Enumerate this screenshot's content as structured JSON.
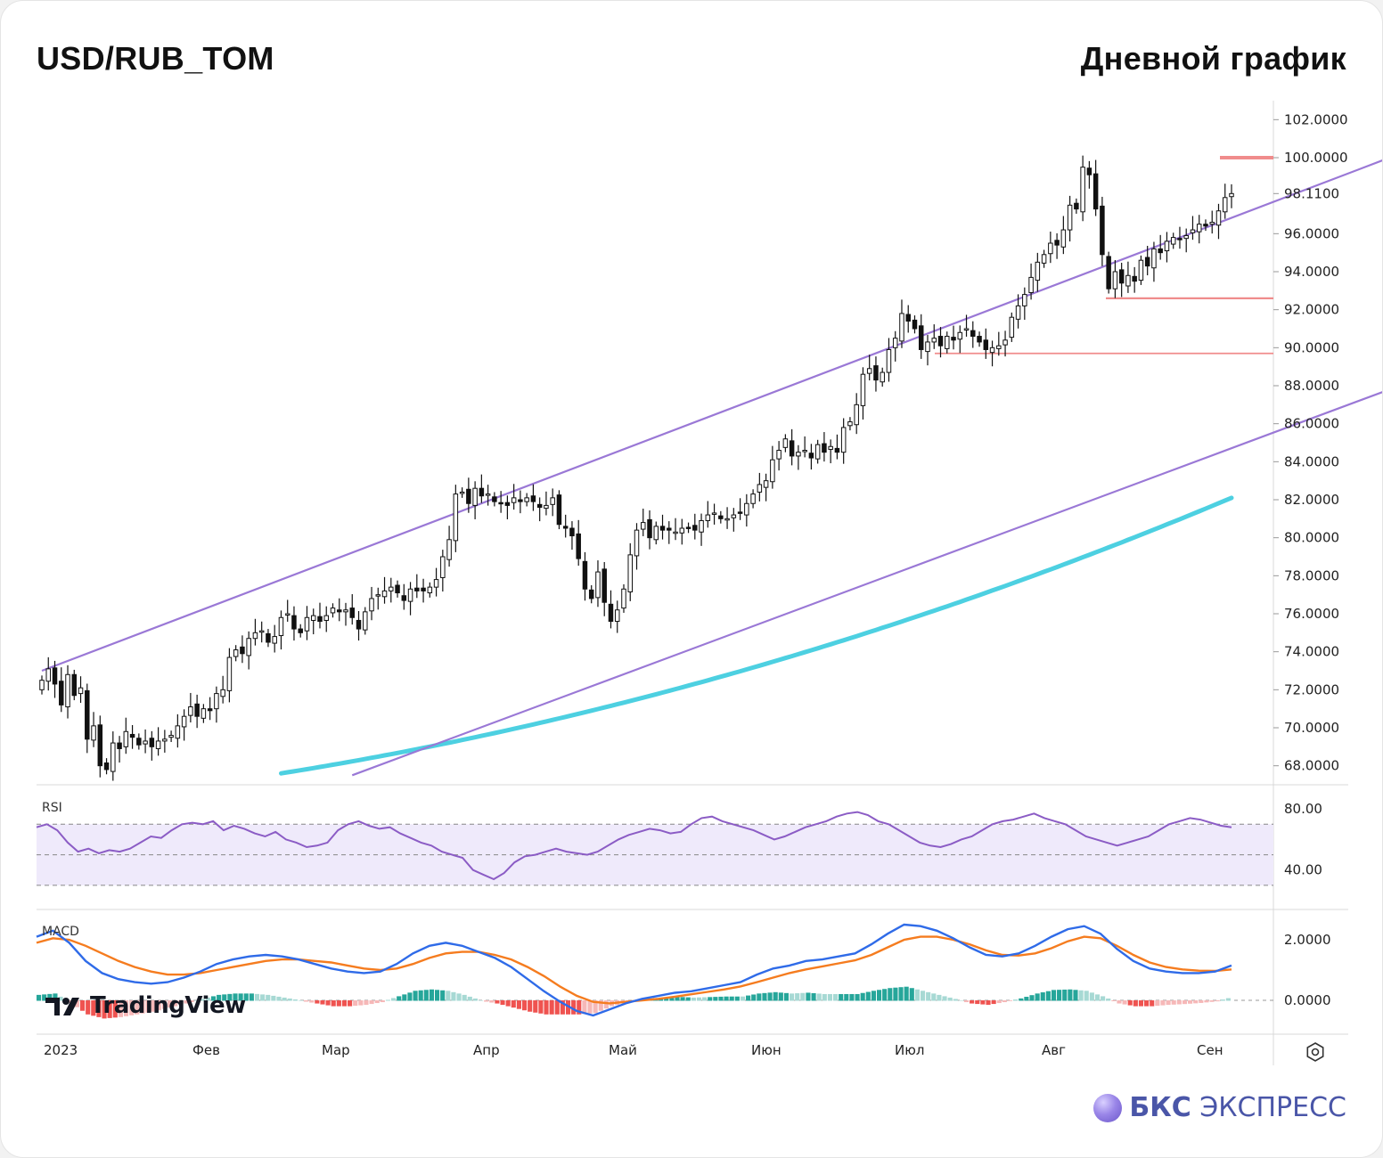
{
  "header": {
    "pair": "USD/RUB_TOM",
    "timeframe": "Дневной график"
  },
  "branding": {
    "tradingview": "TradingView",
    "bcs_bold": "БКС",
    "bcs_rest": " ЭКСПРЕСС"
  },
  "colors": {
    "channel": "#9a78d6",
    "ma": "#4dd0e1",
    "level": "#f08c8c",
    "rsi": "#8b5cc5",
    "macd": "#2f6be8",
    "signal": "#f57c1f",
    "hist_pos": "#26a69a",
    "hist_neg": "#ef5350"
  },
  "chart_data": {
    "type": "candlestick",
    "symbol": "USD/RUB_TOM",
    "y_ticks": [
      "102.0000",
      "100.0000",
      "98.1100",
      "96.0000",
      "94.0000",
      "92.0000",
      "90.0000",
      "88.0000",
      "86.0000",
      "84.0000",
      "82.0000",
      "80.0000",
      "78.0000",
      "76.0000",
      "74.0000",
      "72.0000",
      "70.0000",
      "68.0000"
    ],
    "ylim": [
      67,
      103
    ],
    "x_labels": [
      "2023",
      "Фев",
      "Мар",
      "Апр",
      "Май",
      "Июн",
      "Июл",
      "Авг",
      "Сен"
    ],
    "close": [
      72.5,
      73.1,
      72.3,
      71.2,
      72.8,
      71.7,
      72.1,
      69.4,
      70.1,
      68.0,
      67.8,
      69.2,
      68.9,
      69.8,
      69.5,
      69.1,
      69.3,
      69.0,
      69.3,
      69.4,
      69.6,
      70.1,
      70.6,
      71.1,
      70.6,
      71.0,
      70.9,
      71.8,
      72.0,
      73.7,
      74.1,
      73.9,
      74.7,
      75.0,
      75.1,
      74.5,
      74.8,
      75.8,
      76.0,
      75.2,
      75.0,
      75.8,
      75.9,
      75.6,
      75.9,
      76.3,
      76.1,
      76.2,
      75.8,
      75.2,
      76.1,
      76.8,
      77.0,
      77.2,
      77.4,
      77.1,
      76.7,
      77.3,
      77.2,
      77.2,
      77.4,
      77.8,
      79.0,
      79.9,
      82.3,
      82.4,
      81.8,
      82.6,
      82.2,
      82.3,
      81.9,
      81.8,
      81.7,
      82.1,
      81.9,
      82.1,
      81.9,
      81.6,
      81.7,
      82.1,
      80.7,
      80.5,
      80.1,
      78.9,
      77.3,
      76.8,
      78.2,
      76.6,
      75.6,
      76.2,
      77.3,
      79.1,
      80.4,
      80.8,
      80.0,
      80.6,
      80.4,
      80.4,
      80.3,
      80.5,
      80.5,
      80.4,
      80.9,
      81.2,
      81.3,
      81.0,
      81.0,
      81.2,
      81.3,
      81.8,
      82.3,
      82.8,
      83.0,
      84.1,
      84.6,
      85.2,
      84.3,
      84.5,
      84.6,
      84.2,
      84.9,
      84.5,
      84.8,
      84.5,
      85.8,
      86.1,
      87.0,
      88.6,
      88.9,
      88.3,
      88.7,
      89.9,
      90.5,
      91.8,
      91.4,
      91.0,
      89.9,
      90.3,
      90.5,
      90.1,
      90.6,
      90.4,
      90.8,
      91.0,
      90.6,
      90.3,
      89.9,
      90.0,
      90.1,
      90.4,
      91.6,
      92.2,
      92.8,
      93.7,
      94.5,
      94.9,
      95.5,
      95.4,
      96.2,
      97.5,
      97.3,
      99.5,
      99.1,
      97.3,
      94.9,
      93.1,
      94.0,
      93.4,
      93.8,
      93.5,
      94.6,
      94.3,
      95.2,
      95.0,
      95.6,
      95.8,
      95.7,
      95.9,
      96.2,
      96.5,
      96.4,
      96.6,
      97.2,
      97.9,
      98.11
    ],
    "ma": {
      "start": 67.6,
      "end": 82.1,
      "style": "thick cyan line"
    },
    "channel_upper": {
      "from": [
        0,
        73.0
      ],
      "to": [
        210,
        100.2
      ]
    },
    "channel_lower": {
      "from": [
        48,
        67.5
      ],
      "to": [
        210,
        88.0
      ]
    },
    "levels": [
      92.6,
      89.7,
      100.0
    ],
    "rsi": {
      "label": "RSI",
      "ticks": [
        "80.00",
        "40.00"
      ],
      "band": [
        30,
        70
      ],
      "values": [
        68,
        70,
        66,
        58,
        52,
        54,
        51,
        53,
        52,
        54,
        58,
        62,
        61,
        66,
        70,
        71,
        70,
        72,
        66,
        69,
        67,
        64,
        62,
        65,
        60,
        58,
        55,
        56,
        58,
        66,
        70,
        72,
        69,
        67,
        68,
        64,
        61,
        58,
        56,
        52,
        50,
        48,
        40,
        37,
        34,
        38,
        45,
        49,
        50,
        52,
        54,
        52,
        51,
        50,
        52,
        56,
        60,
        63,
        65,
        67,
        66,
        64,
        65,
        70,
        74,
        75,
        72,
        70,
        68,
        66,
        63,
        60,
        62,
        65,
        68,
        70,
        72,
        75,
        77,
        78,
        76,
        72,
        70,
        66,
        62,
        58,
        56,
        55,
        57,
        60,
        62,
        66,
        70,
        72,
        73,
        75,
        77,
        74,
        72,
        70,
        66,
        62,
        60,
        58,
        56,
        58,
        60,
        62,
        66,
        70,
        72,
        74,
        73,
        71,
        69,
        68
      ]
    },
    "macd": {
      "label": "MACD",
      "ticks": [
        "2.0000",
        "0.0000"
      ],
      "macd": [
        2.1,
        2.3,
        1.9,
        1.3,
        0.9,
        0.7,
        0.6,
        0.55,
        0.6,
        0.75,
        0.95,
        1.2,
        1.35,
        1.45,
        1.5,
        1.45,
        1.35,
        1.2,
        1.05,
        0.95,
        0.9,
        0.95,
        1.2,
        1.55,
        1.8,
        1.9,
        1.8,
        1.6,
        1.4,
        1.1,
        0.7,
        0.3,
        -0.05,
        -0.35,
        -0.5,
        -0.3,
        -0.1,
        0.05,
        0.15,
        0.25,
        0.3,
        0.4,
        0.5,
        0.6,
        0.85,
        1.05,
        1.15,
        1.3,
        1.35,
        1.45,
        1.55,
        1.85,
        2.2,
        2.5,
        2.45,
        2.3,
        2.05,
        1.75,
        1.5,
        1.45,
        1.55,
        1.8,
        2.1,
        2.35,
        2.45,
        2.2,
        1.7,
        1.3,
        1.05,
        0.95,
        0.9,
        0.9,
        0.95,
        1.15
      ],
      "signal": [
        1.9,
        2.05,
        2.0,
        1.8,
        1.55,
        1.3,
        1.1,
        0.95,
        0.85,
        0.85,
        0.9,
        1.0,
        1.1,
        1.2,
        1.3,
        1.35,
        1.35,
        1.3,
        1.25,
        1.15,
        1.05,
        1.0,
        1.05,
        1.2,
        1.4,
        1.55,
        1.6,
        1.6,
        1.5,
        1.35,
        1.1,
        0.8,
        0.45,
        0.15,
        -0.05,
        -0.1,
        -0.05,
        0.0,
        0.05,
        0.12,
        0.2,
        0.28,
        0.36,
        0.46,
        0.6,
        0.75,
        0.9,
        1.02,
        1.12,
        1.22,
        1.32,
        1.5,
        1.75,
        2.0,
        2.1,
        2.1,
        2.0,
        1.85,
        1.65,
        1.5,
        1.48,
        1.55,
        1.72,
        1.95,
        2.1,
        2.05,
        1.8,
        1.5,
        1.25,
        1.1,
        1.02,
        0.98,
        0.97,
        1.02
      ]
    }
  }
}
